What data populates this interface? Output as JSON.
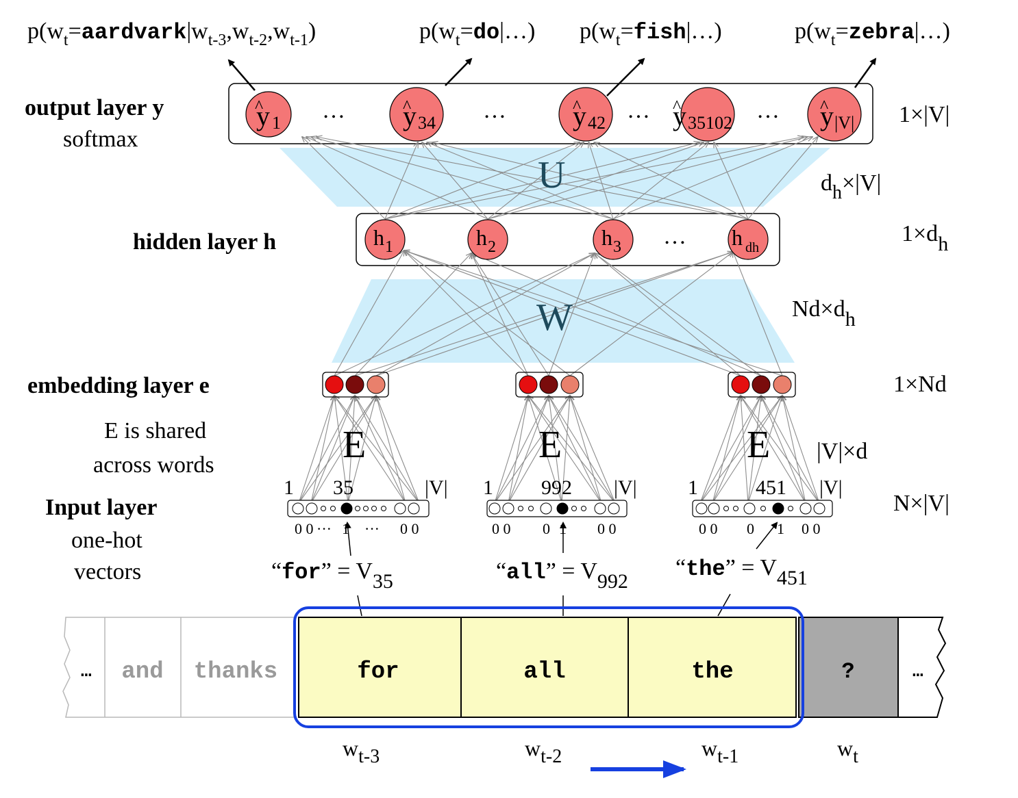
{
  "probabilities": [
    {
      "pre": "p(w",
      "sub": "t",
      "eq": "=",
      "word": "aardvark",
      "post": "|w",
      "sub2": "t-3",
      "comma1": ",w",
      "sub3": "t-2",
      "comma2": ",w",
      "sub4": "t-1",
      "close": ")"
    },
    {
      "pre": "p(w",
      "sub": "t",
      "eq": "=",
      "word": "do",
      "post": "|…)"
    },
    {
      "pre": "p(w",
      "sub": "t",
      "eq": "=",
      "word": "fish",
      "post": "|…)"
    },
    {
      "pre": "p(w",
      "sub": "t",
      "eq": "=",
      "word": "zebra",
      "post": "|…)"
    }
  ],
  "labels": {
    "output_layer": "output layer y",
    "softmax": "softmax",
    "hidden_layer": "hidden layer h",
    "embedding_layer": "embedding layer e",
    "shared_line1": "E is shared",
    "shared_line2": "across words",
    "input_layer": "Input layer",
    "onehot_line1": "one-hot",
    "onehot_line2": "vectors"
  },
  "output_nodes": [
    {
      "base": "y",
      "hat": "^",
      "sub": "1"
    },
    {
      "base": "y",
      "hat": "^",
      "sub": "34"
    },
    {
      "base": "y",
      "hat": "^",
      "sub": "42"
    },
    {
      "base": "y",
      "hat": "^",
      "sub": "35102"
    },
    {
      "base": "y",
      "hat": "^",
      "sub": "|V|"
    }
  ],
  "hidden_nodes": [
    {
      "base": "h",
      "sub": "1"
    },
    {
      "base": "h",
      "sub": "2"
    },
    {
      "base": "h",
      "sub": "3"
    },
    {
      "base": "h",
      "sub": "dh"
    }
  ],
  "ellipsis": "…",
  "ellipsis_small": "···",
  "matrices": {
    "U": "U",
    "W": "W",
    "E": "E"
  },
  "dims": {
    "output": {
      "a": "1×|V|"
    },
    "U": {
      "a": "d",
      "sub": "h",
      "b": "×|V|"
    },
    "hidden": {
      "a": "1×d",
      "sub": "h"
    },
    "W": {
      "a": "Nd×d",
      "sub": "h"
    },
    "embedding": {
      "a": "1×Nd"
    },
    "E": {
      "a": "|V|×d"
    },
    "input": {
      "a": "N×|V|"
    }
  },
  "onehot": [
    {
      "left": "1",
      "mid": "35",
      "right": "|V|",
      "zeros_l": "0 0",
      "one": "1",
      "zeros_r": "0 0",
      "word": "for",
      "v": "V",
      "vsub": "35"
    },
    {
      "left": "1",
      "mid": "992",
      "right": "|V|",
      "zeros_l": "0 0",
      "mid_zero": "0",
      "one": "1",
      "zeros_r": "0 0",
      "word": "all",
      "v": "V",
      "vsub": "992"
    },
    {
      "left": "1",
      "mid": "451",
      "right": "|V|",
      "zeros_l": "0 0",
      "mid_zero": "0",
      "one": "1",
      "zeros_r": "0 0",
      "word": "the",
      "v": "V",
      "vsub": "451"
    }
  ],
  "quote_open": "“",
  "quote_close": "”",
  "equals": " = ",
  "tape": {
    "cells": [
      "…",
      "and",
      "thanks",
      "for",
      "all",
      "the",
      "?",
      "…"
    ],
    "colors": {
      "context": "#fbfbc3",
      "target": "#a9a9a9",
      "window": "#1640e0",
      "faded": "#9a9a9a"
    }
  },
  "positions": [
    {
      "base": "w",
      "sub": "t-3"
    },
    {
      "base": "w",
      "sub": "t-2"
    },
    {
      "base": "w",
      "sub": "t-1"
    },
    {
      "base": "w",
      "sub": "t"
    }
  ],
  "colors": {
    "node": "#f47676",
    "band": "#cfeefb",
    "emb": [
      "#e50f10",
      "#7a0c0c",
      "#e9806c"
    ],
    "arrow": "#1640e0"
  }
}
